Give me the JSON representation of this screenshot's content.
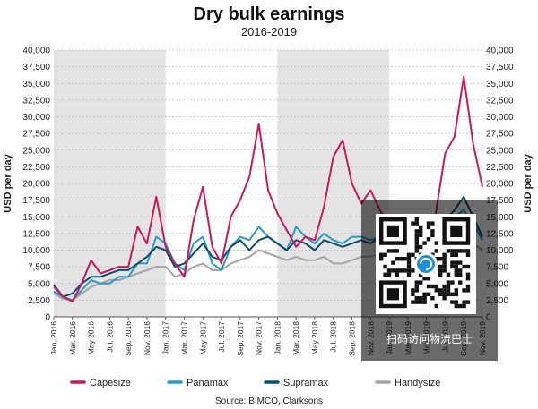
{
  "chart_data": {
    "type": "line",
    "title": "Dry bulk earnings",
    "subtitle": "2016-2019",
    "ylabel": "USD per day",
    "ylabel_right": "USD per day",
    "ylim": [
      0,
      40000
    ],
    "yticks": [
      "0",
      "2,500",
      "5,000",
      "7,500",
      "10,000",
      "12,500",
      "15,000",
      "17,500",
      "20,000",
      "22,500",
      "25,000",
      "27,500",
      "30,000",
      "32,500",
      "35,000",
      "37,500",
      "40,000"
    ],
    "xrange": [
      "2016-01",
      "2019-11"
    ],
    "x_tick_labels": [
      "Jan. 2016",
      "Mar. 2016",
      "May 2016",
      "Jul. 2016",
      "Sep. 2016",
      "Nov. 2016",
      "Jan. 2017",
      "Mar. 2017",
      "May 2017",
      "Jul. 2017",
      "Sep. 2017",
      "Nov. 2017",
      "Jan. 2018",
      "Mar. 2018",
      "May 2018",
      "Jul. 2018",
      "Sep. 2018",
      "Nov. 2018",
      "Jan. 2019",
      "Mar. 2019",
      "May 2019",
      "Jul. 2019",
      "Sep. 2019",
      "Nov. 2019"
    ],
    "shaded_years": [
      "2016",
      "2018"
    ],
    "grid": true,
    "legend_position": "bottom",
    "source": "Source: BIMCO, Clarksons",
    "series": [
      {
        "name": "Capesize",
        "color": "#c8185e",
        "x": [
          "2016-01",
          "2016-02",
          "2016-03",
          "2016-04",
          "2016-05",
          "2016-06",
          "2016-07",
          "2016-08",
          "2016-09",
          "2016-10",
          "2016-11",
          "2016-12",
          "2017-01",
          "2017-02",
          "2017-03",
          "2017-04",
          "2017-05",
          "2017-06",
          "2017-07",
          "2017-08",
          "2017-09",
          "2017-10",
          "2017-11",
          "2017-12",
          "2018-01",
          "2018-02",
          "2018-03",
          "2018-04",
          "2018-05",
          "2018-06",
          "2018-07",
          "2018-08",
          "2018-09",
          "2018-10",
          "2018-11",
          "2018-12",
          "2019-01",
          "2019-02",
          "2019-03",
          "2019-04",
          "2019-05",
          "2019-06",
          "2019-07",
          "2019-08",
          "2019-09",
          "2019-10",
          "2019-11"
        ],
        "values": [
          4500,
          3000,
          2300,
          5000,
          8500,
          6500,
          7000,
          7500,
          7500,
          13500,
          11000,
          18000,
          10500,
          8000,
          6000,
          14500,
          19500,
          10500,
          8000,
          15000,
          17500,
          21000,
          29000,
          19000,
          15500,
          13000,
          10500,
          12000,
          11500,
          16500,
          24000,
          26500,
          20000,
          17000,
          19000,
          16000,
          13500,
          11000,
          6000,
          5000,
          8000,
          15500,
          24500,
          27000,
          36000,
          26000,
          19500
        ]
      },
      {
        "name": "Panamax",
        "color": "#2a9ac4",
        "x": [
          "2016-01",
          "2016-02",
          "2016-03",
          "2016-04",
          "2016-05",
          "2016-06",
          "2016-07",
          "2016-08",
          "2016-09",
          "2016-10",
          "2016-11",
          "2016-12",
          "2017-01",
          "2017-02",
          "2017-03",
          "2017-04",
          "2017-05",
          "2017-06",
          "2017-07",
          "2017-08",
          "2017-09",
          "2017-10",
          "2017-11",
          "2017-12",
          "2018-01",
          "2018-02",
          "2018-03",
          "2018-04",
          "2018-05",
          "2018-06",
          "2018-07",
          "2018-08",
          "2018-09",
          "2018-10",
          "2018-11",
          "2018-12",
          "2019-01",
          "2019-02",
          "2019-03",
          "2019-04",
          "2019-05",
          "2019-06",
          "2019-07",
          "2019-08",
          "2019-09",
          "2019-10",
          "2019-11"
        ],
        "values": [
          3800,
          3000,
          2500,
          4000,
          5500,
          5000,
          5000,
          6000,
          6000,
          8000,
          8000,
          12000,
          11000,
          8000,
          7000,
          11000,
          12000,
          8000,
          7000,
          10500,
          12000,
          11500,
          13500,
          12000,
          11000,
          10000,
          13500,
          12000,
          11000,
          12500,
          11500,
          11000,
          12000,
          12000,
          11500,
          12000,
          10000,
          8000,
          6500,
          7000,
          9000,
          11500,
          14500,
          15000,
          16000,
          14000,
          11500
        ]
      },
      {
        "name": "Supramax",
        "color": "#0c4e6e",
        "x": [
          "2016-01",
          "2016-02",
          "2016-03",
          "2016-04",
          "2016-05",
          "2016-06",
          "2016-07",
          "2016-08",
          "2016-09",
          "2016-10",
          "2016-11",
          "2016-12",
          "2017-01",
          "2017-02",
          "2017-03",
          "2017-04",
          "2017-05",
          "2017-06",
          "2017-07",
          "2017-08",
          "2017-09",
          "2017-10",
          "2017-11",
          "2017-12",
          "2018-01",
          "2018-02",
          "2018-03",
          "2018-04",
          "2018-05",
          "2018-06",
          "2018-07",
          "2018-08",
          "2018-09",
          "2018-10",
          "2018-11",
          "2018-12",
          "2019-01",
          "2019-02",
          "2019-03",
          "2019-04",
          "2019-05",
          "2019-06",
          "2019-07",
          "2019-08",
          "2019-09",
          "2019-10",
          "2019-11"
        ],
        "values": [
          4800,
          3000,
          3500,
          5000,
          6000,
          6000,
          6500,
          7000,
          7000,
          8000,
          9000,
          10500,
          10000,
          7500,
          8000,
          9500,
          11000,
          9000,
          8500,
          10500,
          11500,
          10000,
          11500,
          12000,
          11000,
          10000,
          11500,
          11000,
          10000,
          11500,
          11000,
          10500,
          11000,
          11500,
          11000,
          12000,
          9500,
          7500,
          6500,
          7000,
          9000,
          11500,
          14500,
          16000,
          18000,
          15000,
          12000
        ]
      },
      {
        "name": "Handysize",
        "color": "#a3a3a3",
        "x": [
          "2016-01",
          "2016-02",
          "2016-03",
          "2016-04",
          "2016-05",
          "2016-06",
          "2016-07",
          "2016-08",
          "2016-09",
          "2016-10",
          "2016-11",
          "2016-12",
          "2017-01",
          "2017-02",
          "2017-03",
          "2017-04",
          "2017-05",
          "2017-06",
          "2017-07",
          "2017-08",
          "2017-09",
          "2017-10",
          "2017-11",
          "2017-12",
          "2018-01",
          "2018-02",
          "2018-03",
          "2018-04",
          "2018-05",
          "2018-06",
          "2018-07",
          "2018-08",
          "2018-09",
          "2018-10",
          "2018-11",
          "2018-12",
          "2019-01",
          "2019-02",
          "2019-03",
          "2019-04",
          "2019-05",
          "2019-06",
          "2019-07",
          "2019-08",
          "2019-09",
          "2019-10",
          "2019-11"
        ],
        "values": [
          3500,
          2700,
          2500,
          3500,
          4500,
          5000,
          5500,
          5500,
          6000,
          6500,
          7000,
          7500,
          7500,
          6000,
          6500,
          7500,
          8000,
          7000,
          7000,
          8000,
          8500,
          9000,
          10000,
          9500,
          9000,
          8500,
          9000,
          8500,
          8500,
          9000,
          8000,
          8000,
          8500,
          9000,
          9000,
          9500,
          8500,
          7000,
          6000,
          6500,
          7500,
          9000,
          10500,
          11000,
          12000,
          11000,
          10000
        ]
      }
    ]
  },
  "overlay": {
    "caption": "扫码访问物流巴士"
  }
}
